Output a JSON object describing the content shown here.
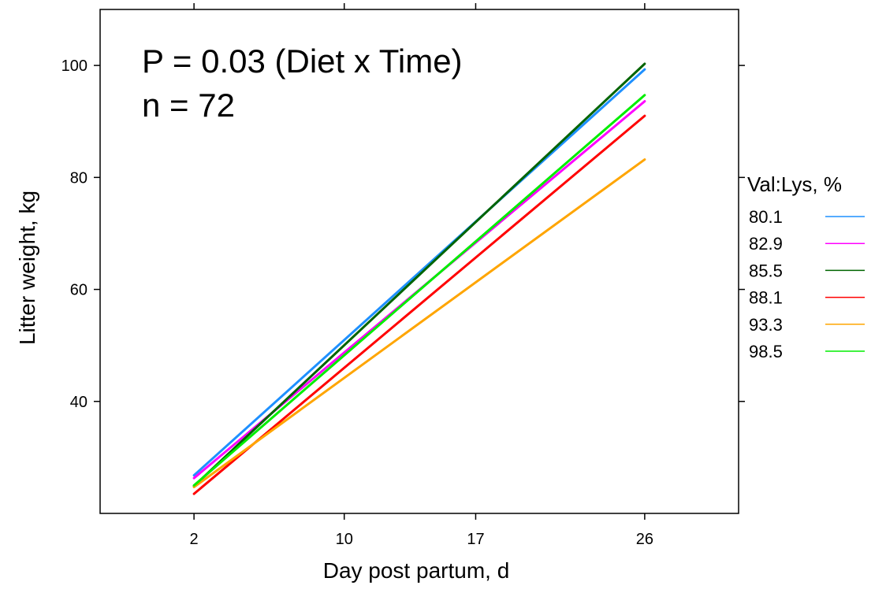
{
  "chart_data": {
    "type": "line",
    "title": "",
    "xlabel": "Day post partum, d",
    "ylabel": "Litter weight, kg",
    "x_categories": [
      "2",
      "10",
      "17",
      "26"
    ],
    "xlim": [
      -3,
      31
    ],
    "ylim": [
      20,
      110
    ],
    "y_ticks": [
      40,
      60,
      80,
      100
    ],
    "annotations": [
      "P = 0.03 (Diet x Time)",
      "n = 72"
    ],
    "legend": {
      "title": "Val:Lys, %",
      "position": "right"
    },
    "series": [
      {
        "name": "80.1",
        "color": "#1E90FF",
        "x": [
          2,
          26
        ],
        "y": [
          26.8,
          99.3
        ]
      },
      {
        "name": "82.9",
        "color": "#FF00FF",
        "x": [
          2,
          26
        ],
        "y": [
          26.3,
          93.6
        ]
      },
      {
        "name": "85.5",
        "color": "#006400",
        "x": [
          2,
          26
        ],
        "y": [
          24.9,
          100.3
        ]
      },
      {
        "name": "88.1",
        "color": "#FF0000",
        "x": [
          2,
          26
        ],
        "y": [
          23.5,
          91.0
        ]
      },
      {
        "name": "93.3",
        "color": "#FFA500",
        "x": [
          2,
          26
        ],
        "y": [
          24.7,
          83.2
        ]
      },
      {
        "name": "98.5",
        "color": "#00EE00",
        "x": [
          2,
          26
        ],
        "y": [
          25.0,
          94.7
        ]
      }
    ],
    "grid": false
  }
}
